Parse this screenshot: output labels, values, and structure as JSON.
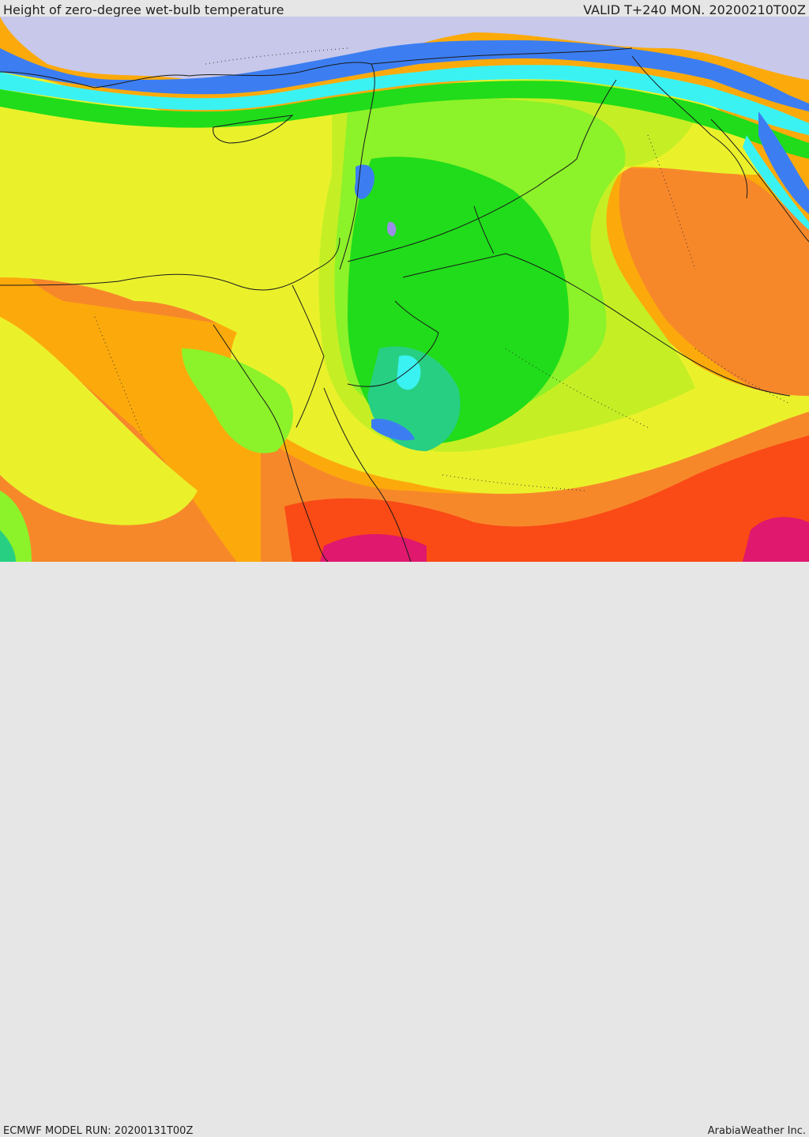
{
  "header": {
    "title": "Height of zero-degree wet-bulb temperature",
    "valid": "VALID T+240 MON. 20200210T00Z"
  },
  "footer": {
    "model_run": "ECMWF MODEL RUN: 20200131T00Z",
    "brand": "ArabiaWeather Inc."
  },
  "palette": {
    "magenta": "#e0186e",
    "red": "#fa4a16",
    "dark_orange": "#f7882a",
    "orange": "#fcaa0b",
    "yellow": "#eaf12b",
    "yellow_green": "#c5ef24",
    "lime": "#8cf22a",
    "green": "#20dc1a",
    "sea_green": "#27cf83",
    "cyan": "#3bf2f2",
    "blue": "#3c7ef2",
    "violet": "#9a8ee8",
    "lavender": "#c8c8ea"
  }
}
